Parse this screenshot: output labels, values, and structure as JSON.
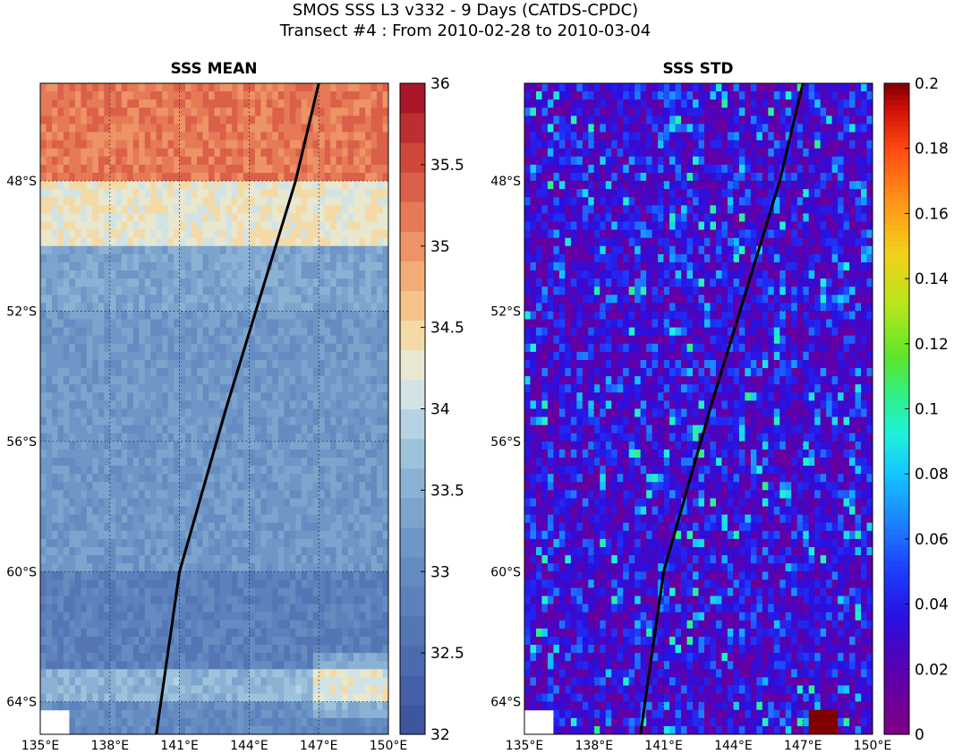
{
  "figure": {
    "title_line1": "SMOS SSS L3 v332 - 9 Days (CATDS-CPDC)",
    "title_line2": "Transect #4 : From 2010-02-28 to 2010-03-04"
  },
  "chart_data": [
    {
      "type": "heatmap",
      "title": "SSS MEAN",
      "xlim": [
        135,
        150
      ],
      "ylim": [
        -65,
        -45
      ],
      "x_ticks": [
        "135°E",
        "138°E",
        "141°E",
        "144°E",
        "147°E",
        "150°E"
      ],
      "y_ticks": [
        "48°S",
        "52°S",
        "56°S",
        "60°S",
        "64°S"
      ],
      "colorbar": {
        "min": 32,
        "max": 36,
        "levels": 22,
        "ticks": [
          "32",
          "32.5",
          "33",
          "33.5",
          "34",
          "34.5",
          "35",
          "35.5",
          "36"
        ],
        "colormap": "RdYlBu_r"
      },
      "field_description": [
        {
          "lat_range": [
            -48,
            -45
          ],
          "value": 35.2
        },
        {
          "lat_range": [
            -50,
            -48
          ],
          "value": 34.3
        },
        {
          "lat_range": [
            -52,
            -50
          ],
          "value": 33.4
        },
        {
          "lat_range": [
            -60,
            -52
          ],
          "value": 33.2
        },
        {
          "lat_range": [
            -63,
            -60
          ],
          "value": 32.8
        },
        {
          "lat_range": [
            -64,
            -63
          ],
          "value": 33.6
        },
        {
          "lat_range": [
            -65,
            -64
          ],
          "value": 33.0
        }
      ],
      "transect": {
        "lon": [
          147.0,
          146.0,
          143.0,
          141.0,
          140.4,
          140.0
        ],
        "lat": [
          -45.0,
          -48.0,
          -55.0,
          -60.0,
          -63.0,
          -65.0
        ],
        "color": "#000000"
      }
    },
    {
      "type": "heatmap",
      "title": "SSS STD",
      "xlim": [
        135,
        150
      ],
      "ylim": [
        -65,
        -45
      ],
      "x_ticks": [
        "135°E",
        "138°E",
        "141°E",
        "144°E",
        "147°E",
        "150°E"
      ],
      "y_ticks": [
        "48°S",
        "52°S",
        "56°S",
        "60°S",
        "64°S"
      ],
      "colorbar": {
        "min": 0,
        "max": 0.2,
        "ticks": [
          "0",
          "0.02",
          "0.04",
          "0.06",
          "0.08",
          "0.1",
          "0.12",
          "0.14",
          "0.16",
          "0.18",
          "0.2"
        ],
        "colormap": "jet_purple"
      },
      "field_description": [
        {
          "lat_range": [
            -65,
            -45
          ],
          "value": 0.035
        }
      ],
      "transect": {
        "lon": [
          147.0,
          146.0,
          143.0,
          141.0,
          140.4,
          140.0
        ],
        "lat": [
          -45.0,
          -48.0,
          -55.0,
          -60.0,
          -63.0,
          -65.0
        ],
        "color": "#000000"
      }
    }
  ]
}
